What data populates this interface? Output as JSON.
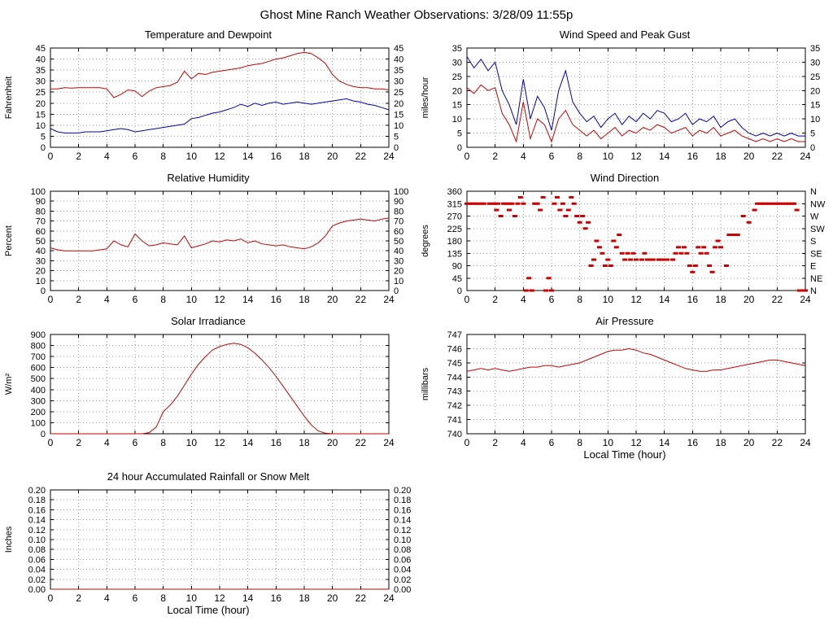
{
  "page_title": "Ghost Mine Ranch Weather Observations: 3/28/09 11:55p",
  "colors": {
    "red": "#cc0000",
    "blue": "#0000bb",
    "grid": "#9a9a9a",
    "axis": "#000000"
  },
  "x_axis": {
    "label": "Local Time (hour)",
    "min": 0,
    "max": 24,
    "ticks": [
      0,
      2,
      4,
      6,
      8,
      10,
      12,
      14,
      16,
      18,
      20,
      22,
      24
    ]
  },
  "chart_data": [
    {
      "id": "temperature",
      "type": "line",
      "title": "Temperature and Dewpoint",
      "ylabel": "Fahrenheit",
      "xlabel": "",
      "ylim": [
        0,
        45
      ],
      "yticks": [
        0,
        5,
        10,
        15,
        20,
        25,
        30,
        35,
        40,
        45
      ],
      "ytick_labels": [
        "0",
        "5",
        "10",
        "15",
        "20",
        "25",
        "30",
        "35",
        "40",
        "45"
      ],
      "right_labels": [
        "0",
        "5",
        "10",
        "15",
        "20",
        "25",
        "30",
        "35",
        "40",
        "45"
      ],
      "series": [
        {
          "name": "temperature",
          "color": "red",
          "x_start": 0,
          "x_step": 0.5,
          "values": [
            26.5,
            26.5,
            27,
            26.8,
            27,
            27,
            27,
            27,
            26.5,
            22.5,
            24,
            26,
            25.5,
            23,
            25.5,
            27,
            27.5,
            28,
            29.5,
            34.5,
            31,
            33.5,
            33,
            34,
            34.5,
            35,
            35.5,
            36,
            37,
            37.5,
            38,
            39,
            40,
            40.5,
            41.5,
            42.5,
            43,
            42.5,
            40.5,
            38,
            33,
            30,
            28.5,
            27.5,
            27,
            27,
            26.5,
            26.5,
            26
          ]
        },
        {
          "name": "dewpoint",
          "color": "blue",
          "x_start": 0,
          "x_step": 0.5,
          "values": [
            8.5,
            7,
            6.5,
            6.5,
            6.5,
            7,
            7,
            7,
            7.5,
            8,
            8.5,
            8,
            7,
            7.5,
            8,
            8.5,
            9,
            9.5,
            10,
            10.5,
            13,
            13.5,
            14.5,
            15.5,
            16,
            17,
            18,
            19.5,
            18.5,
            20,
            19,
            20,
            20.5,
            19.5,
            20,
            20.5,
            20,
            19.5,
            20,
            20.5,
            21,
            21.5,
            22,
            21,
            20.5,
            19.5,
            19,
            18,
            17
          ]
        }
      ]
    },
    {
      "id": "wind",
      "type": "line",
      "title": "Wind Speed and Peak Gust",
      "ylabel": "miles/hour",
      "xlabel": "",
      "ylim": [
        0,
        35
      ],
      "yticks": [
        0,
        5,
        10,
        15,
        20,
        25,
        30,
        35
      ],
      "ytick_labels": [
        "0",
        "5",
        "10",
        "15",
        "20",
        "25",
        "30",
        "35"
      ],
      "right_labels": [
        "0",
        "5",
        "10",
        "15",
        "20",
        "25",
        "30",
        "35"
      ],
      "series": [
        {
          "name": "peak-gust",
          "color": "blue",
          "x_start": 0,
          "x_step": 0.5,
          "values": [
            32,
            28,
            31,
            27,
            30,
            20,
            15,
            8,
            24,
            10,
            18,
            14,
            6,
            20,
            27,
            16,
            12,
            9,
            11,
            7,
            10,
            12,
            8,
            11,
            9,
            12,
            10,
            13,
            12,
            9,
            10,
            12,
            8,
            10,
            9,
            11,
            7,
            9,
            10,
            7,
            5,
            4,
            5,
            4,
            5,
            4,
            5,
            4,
            4
          ]
        },
        {
          "name": "wind-speed",
          "color": "red",
          "x_start": 0,
          "x_step": 0.5,
          "values": [
            21,
            19,
            22,
            20,
            21,
            12,
            8,
            2,
            16,
            3,
            10,
            8,
            2,
            10,
            13,
            8,
            6,
            4,
            6,
            3,
            5,
            7,
            4,
            6,
            5,
            7,
            6,
            8,
            7,
            5,
            6,
            7,
            4,
            6,
            5,
            7,
            4,
            5,
            6,
            4,
            3,
            2,
            3,
            2,
            3,
            2,
            3,
            2,
            2
          ]
        }
      ]
    },
    {
      "id": "humidity",
      "type": "line",
      "title": "Relative Humidity",
      "ylabel": "Percent",
      "xlabel": "",
      "ylim": [
        0,
        100
      ],
      "yticks": [
        0,
        10,
        20,
        30,
        40,
        50,
        60,
        70,
        80,
        90,
        100
      ],
      "ytick_labels": [
        "0",
        "10",
        "20",
        "30",
        "40",
        "50",
        "60",
        "70",
        "80",
        "90",
        "100"
      ],
      "right_labels": [
        "0",
        "10",
        "20",
        "30",
        "40",
        "50",
        "60",
        "70",
        "80",
        "90",
        "100"
      ],
      "series": [
        {
          "name": "relative-humidity",
          "color": "red",
          "x_start": 0,
          "x_step": 0.5,
          "values": [
            43,
            41,
            40,
            40,
            40,
            40,
            40,
            41,
            42,
            50,
            46,
            44,
            57,
            50,
            45,
            46,
            48,
            47,
            46,
            55,
            43,
            45,
            47,
            50,
            49,
            51,
            50,
            52,
            48,
            50,
            47,
            46,
            45,
            46,
            44,
            43,
            42,
            44,
            48,
            55,
            65,
            68,
            70,
            71,
            72,
            71,
            70,
            72,
            73
          ]
        }
      ]
    },
    {
      "id": "wind_direction",
      "type": "scatter",
      "title": "Wind Direction",
      "ylabel": "degrees",
      "xlabel": "",
      "ylim": [
        0,
        360
      ],
      "yticks": [
        0,
        45,
        90,
        135,
        180,
        225,
        270,
        315,
        360
      ],
      "ytick_labels": [
        "0",
        "45",
        "90",
        "135",
        "180",
        "225",
        "270",
        "315",
        "360"
      ],
      "right_labels": [
        "N",
        "NE",
        "E",
        "SE",
        "S",
        "SW",
        "W",
        "NW",
        "N"
      ],
      "series": [
        {
          "name": "wind-direction",
          "color": "red",
          "style": "dash",
          "points": [
            [
              0,
              315
            ],
            [
              0.2,
              315
            ],
            [
              0.4,
              315
            ],
            [
              0.6,
              315
            ],
            [
              0.8,
              315
            ],
            [
              1,
              315
            ],
            [
              1.2,
              315
            ],
            [
              1.6,
              315
            ],
            [
              1.8,
              315
            ],
            [
              2,
              315
            ],
            [
              2.2,
              315
            ],
            [
              2.1,
              292
            ],
            [
              2.4,
              270
            ],
            [
              2.6,
              315
            ],
            [
              2.8,
              315
            ],
            [
              3,
              315
            ],
            [
              3.2,
              315
            ],
            [
              3,
              292
            ],
            [
              3.4,
              270
            ],
            [
              3.6,
              315
            ],
            [
              3.8,
              338
            ],
            [
              4,
              315
            ],
            [
              4.2,
              0
            ],
            [
              4.4,
              45
            ],
            [
              4.6,
              0
            ],
            [
              4.8,
              315
            ],
            [
              5,
              315
            ],
            [
              5.2,
              292
            ],
            [
              5.4,
              338
            ],
            [
              5.6,
              0
            ],
            [
              5.8,
              45
            ],
            [
              6,
              0
            ],
            [
              6.2,
              315
            ],
            [
              6.4,
              338
            ],
            [
              6.6,
              292
            ],
            [
              6.8,
              315
            ],
            [
              7,
              270
            ],
            [
              7.2,
              292
            ],
            [
              7.4,
              338
            ],
            [
              7.6,
              315
            ],
            [
              7.8,
              270
            ],
            [
              8,
              247
            ],
            [
              8.2,
              270
            ],
            [
              8.4,
              225
            ],
            [
              8.6,
              247
            ],
            [
              8.8,
              90
            ],
            [
              9,
              112
            ],
            [
              9.2,
              180
            ],
            [
              9.4,
              157
            ],
            [
              9.6,
              135
            ],
            [
              9.8,
              90
            ],
            [
              10,
              112
            ],
            [
              10.2,
              90
            ],
            [
              10.4,
              180
            ],
            [
              10.6,
              157
            ],
            [
              10.8,
              202
            ],
            [
              11,
              135
            ],
            [
              11.2,
              112
            ],
            [
              11.4,
              135
            ],
            [
              11.6,
              112
            ],
            [
              11.8,
              135
            ],
            [
              12,
              112
            ],
            [
              12.4,
              112
            ],
            [
              12.6,
              135
            ],
            [
              12.8,
              112
            ],
            [
              13,
              112
            ],
            [
              13.2,
              112
            ],
            [
              13.6,
              112
            ],
            [
              13.8,
              112
            ],
            [
              14,
              112
            ],
            [
              14.2,
              112
            ],
            [
              14.6,
              112
            ],
            [
              14.8,
              135
            ],
            [
              15,
              157
            ],
            [
              15.2,
              135
            ],
            [
              15.4,
              157
            ],
            [
              15.6,
              135
            ],
            [
              15.8,
              90
            ],
            [
              16,
              67
            ],
            [
              16.2,
              90
            ],
            [
              16.4,
              157
            ],
            [
              16.6,
              135
            ],
            [
              16.8,
              157
            ],
            [
              17,
              135
            ],
            [
              17.2,
              90
            ],
            [
              17.4,
              67
            ],
            [
              17.6,
              157
            ],
            [
              17.8,
              180
            ],
            [
              18,
              157
            ],
            [
              18.4,
              90
            ],
            [
              18.6,
              202
            ],
            [
              18.8,
              202
            ],
            [
              19,
              202
            ],
            [
              19.2,
              202
            ],
            [
              19.6,
              270
            ],
            [
              20,
              247
            ],
            [
              20.4,
              292
            ],
            [
              20.6,
              315
            ],
            [
              20.8,
              315
            ],
            [
              21,
              315
            ],
            [
              21.2,
              315
            ],
            [
              21.4,
              315
            ],
            [
              21.6,
              315
            ],
            [
              21.8,
              315
            ],
            [
              22,
              315
            ],
            [
              22.2,
              315
            ],
            [
              22.4,
              315
            ],
            [
              22.6,
              315
            ],
            [
              22.8,
              315
            ],
            [
              23,
              315
            ],
            [
              23.2,
              315
            ],
            [
              23.4,
              292
            ],
            [
              23.6,
              0
            ],
            [
              23.8,
              0
            ],
            [
              24,
              0
            ]
          ]
        }
      ]
    },
    {
      "id": "solar",
      "type": "line",
      "title": "Solar Irradiance",
      "ylabel": "W/m²",
      "xlabel": "",
      "ylim": [
        0,
        900
      ],
      "yticks": [
        0,
        100,
        200,
        300,
        400,
        500,
        600,
        700,
        800,
        900
      ],
      "ytick_labels": [
        "0",
        "100",
        "200",
        "300",
        "400",
        "500",
        "600",
        "700",
        "800",
        "900"
      ],
      "right_labels": [],
      "series": [
        {
          "name": "solar-irradiance",
          "color": "red",
          "x_start": 0,
          "x_step": 0.5,
          "values": [
            0,
            0,
            0,
            0,
            0,
            0,
            0,
            0,
            0,
            0,
            0,
            0,
            0,
            0,
            10,
            60,
            200,
            260,
            340,
            440,
            540,
            630,
            700,
            760,
            790,
            810,
            820,
            810,
            780,
            730,
            670,
            600,
            520,
            430,
            340,
            250,
            160,
            80,
            25,
            5,
            0,
            0,
            0,
            0,
            0,
            0,
            0,
            0,
            0
          ]
        }
      ]
    },
    {
      "id": "pressure",
      "type": "line",
      "title": "Air Pressure",
      "ylabel": "millibars",
      "xlabel": "Local Time (hour)",
      "ylim": [
        740,
        747
      ],
      "yticks": [
        740,
        741,
        742,
        743,
        744,
        745,
        746,
        747
      ],
      "ytick_labels": [
        "740",
        "741",
        "742",
        "743",
        "744",
        "745",
        "746",
        "747"
      ],
      "right_labels": [],
      "series": [
        {
          "name": "air-pressure",
          "color": "red",
          "x_start": 0,
          "x_step": 0.5,
          "values": [
            744.4,
            744.5,
            744.6,
            744.5,
            744.6,
            744.5,
            744.4,
            744.5,
            744.6,
            744.7,
            744.7,
            744.8,
            744.8,
            744.7,
            744.8,
            744.9,
            745.0,
            745.2,
            745.4,
            745.6,
            745.8,
            745.9,
            745.9,
            746.0,
            745.9,
            745.7,
            745.6,
            745.4,
            745.2,
            745.0,
            744.8,
            744.6,
            744.5,
            744.4,
            744.4,
            744.5,
            744.5,
            744.6,
            744.7,
            744.8,
            744.9,
            745.0,
            745.1,
            745.2,
            745.2,
            745.1,
            745.0,
            744.9,
            744.8
          ]
        }
      ]
    },
    {
      "id": "rainfall",
      "type": "line",
      "title": "24 hour Accumulated Rainfall or Snow Melt",
      "ylabel": "Inches",
      "xlabel": "Local Time (hour)",
      "ylim": [
        0,
        0.2
      ],
      "yticks": [
        0,
        0.02,
        0.04,
        0.06,
        0.08,
        0.1,
        0.12,
        0.14,
        0.16,
        0.18,
        0.2
      ],
      "ytick_labels": [
        "0.00",
        "0.02",
        "0.04",
        "0.06",
        "0.08",
        "0.10",
        "0.12",
        "0.14",
        "0.16",
        "0.18",
        "0.20"
      ],
      "right_labels": [
        "0.00",
        "0.02",
        "0.04",
        "0.06",
        "0.08",
        "0.10",
        "0.12",
        "0.14",
        "0.16",
        "0.18",
        "0.20"
      ],
      "series": [
        {
          "name": "accumulated-rainfall",
          "color": "red",
          "x_start": 0,
          "x_step": 12,
          "values": [
            0,
            0,
            0
          ]
        }
      ]
    }
  ]
}
